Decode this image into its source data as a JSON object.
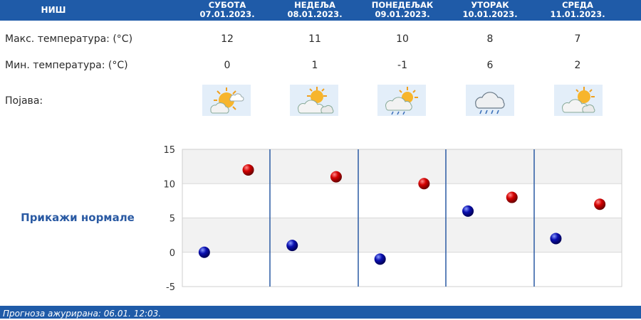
{
  "header": {
    "city": "НИШ",
    "days": [
      {
        "name": "СУБОТА",
        "date": "07.01.2023."
      },
      {
        "name": "НЕДЕЉА",
        "date": "08.01.2023."
      },
      {
        "name": "ПОНЕДЕЉАК",
        "date": "09.01.2023."
      },
      {
        "name": "УТОРАК",
        "date": "10.01.2023."
      },
      {
        "name": "СРЕДА",
        "date": "11.01.2023."
      }
    ]
  },
  "rows": {
    "max_label": "Макс. температура: (°C)",
    "min_label": "Мин. температура: (°C)",
    "phenomenon_label": "Појава:",
    "max_values": [
      "12",
      "11",
      "10",
      "8",
      "7"
    ],
    "min_values": [
      "0",
      "1",
      "-1",
      "6",
      "2"
    ],
    "icons": [
      "sun-cloud-icon",
      "sun-behind-cloud-icon",
      "sun-cloud-light-rain-icon",
      "cloud-rain-icon",
      "sun-behind-cloud-icon"
    ]
  },
  "show_normals": "Прикажи нормале",
  "footer": {
    "text": "Прогноза ажурирана:  06.01.  12:03."
  },
  "colors": {
    "header": "#1f5ba8",
    "max_dot": "#d40000",
    "min_dot": "#0b10b0",
    "divider": "#2a5aa3"
  },
  "chart_data": {
    "type": "scatter",
    "categories": [
      "07.01.2023.",
      "08.01.2023.",
      "09.01.2023.",
      "10.01.2023.",
      "11.01.2023."
    ],
    "series": [
      {
        "values": [
          12,
          11,
          10,
          8,
          7
        ],
        "color": "#d40000"
      },
      {
        "values": [
          0,
          1,
          -1,
          6,
          2
        ],
        "color": "#0b10b0"
      }
    ],
    "yticks": [
      "15",
      "10",
      "5",
      "0",
      "-5"
    ],
    "ylim": [
      -5,
      15
    ],
    "grid": true
  }
}
